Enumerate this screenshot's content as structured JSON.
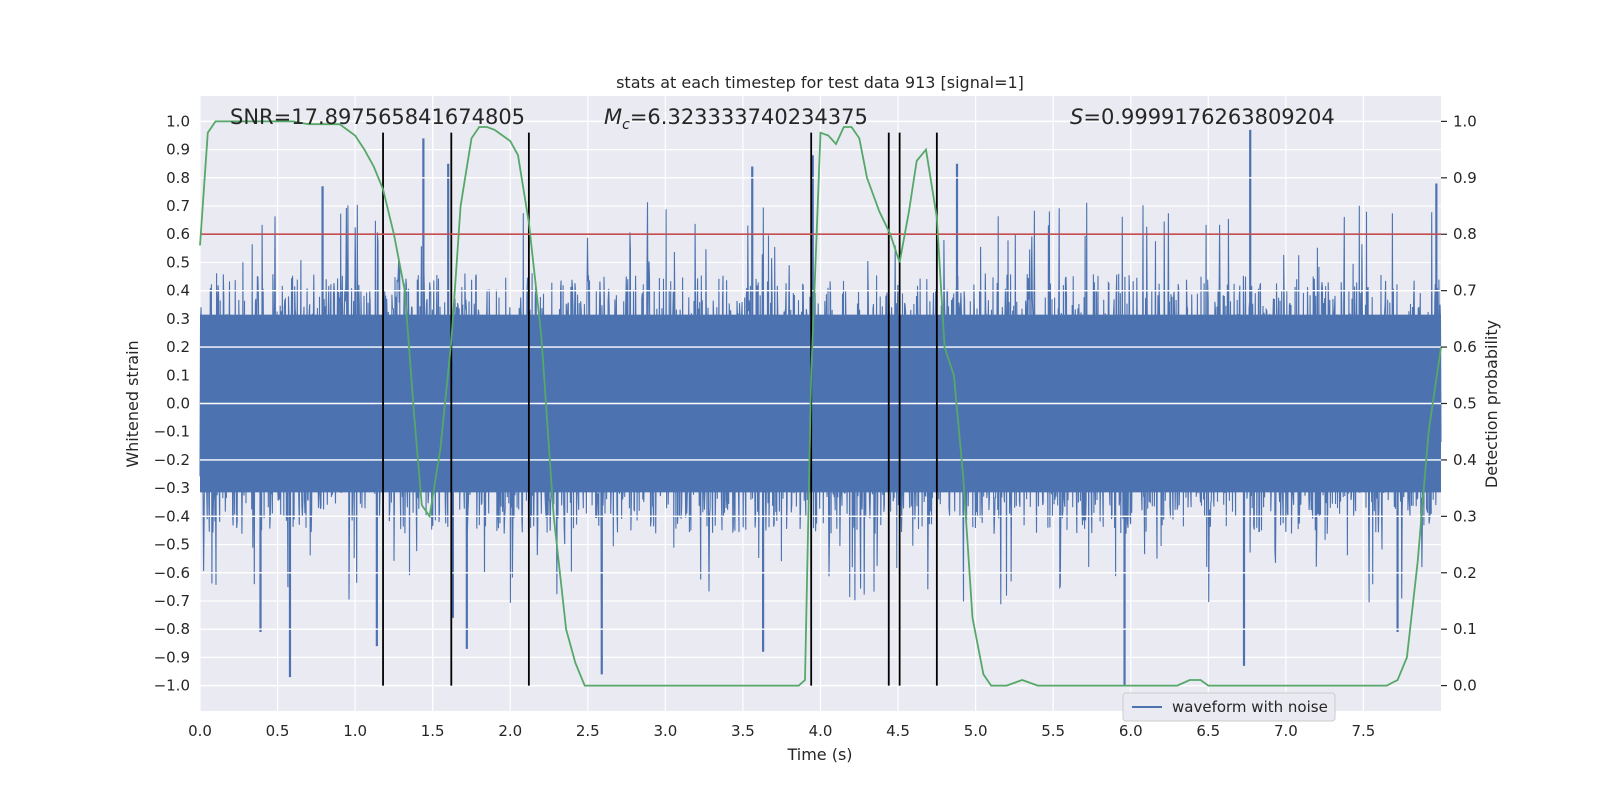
{
  "chart_data": {
    "type": "line",
    "title": "stats at each timestep for test data 913 [signal=1]",
    "xlabel": "Time (s)",
    "ylabel": "Whitened strain",
    "y2label": "Detection probability",
    "xlim": [
      0.0,
      8.0
    ],
    "ylim": [
      -1.09,
      1.09
    ],
    "y2lim": [
      -0.045,
      1.045
    ],
    "xticks": [
      0.0,
      0.5,
      1.0,
      1.5,
      2.0,
      2.5,
      3.0,
      3.5,
      4.0,
      4.5,
      5.0,
      5.5,
      6.0,
      6.5,
      7.0,
      7.5
    ],
    "xtick_labels": [
      "0.0",
      "0.5",
      "1.0",
      "1.5",
      "2.0",
      "2.5",
      "3.0",
      "3.5",
      "4.0",
      "4.5",
      "5.0",
      "5.5",
      "6.0",
      "6.5",
      "7.0",
      "7.5"
    ],
    "yticks": [
      1.0,
      0.9,
      0.8,
      0.7,
      0.6,
      0.5,
      0.4,
      0.3,
      0.2,
      0.1,
      0.0,
      -0.1,
      -0.2,
      -0.3,
      -0.4,
      -0.5,
      -0.6,
      -0.7,
      -0.8,
      -0.9,
      -1.0
    ],
    "ytick_labels": [
      "1.0",
      "0.9",
      "0.8",
      "0.7",
      "0.6",
      "0.5",
      "0.4",
      "0.3",
      "0.2",
      "0.1",
      "0.0",
      "−0.1",
      "−0.2",
      "−0.3",
      "−0.4",
      "−0.5",
      "−0.6",
      "−0.7",
      "−0.8",
      "−0.9",
      "−1.0"
    ],
    "y2ticks": [
      1.0,
      0.9,
      0.8,
      0.7,
      0.6,
      0.5,
      0.4,
      0.3,
      0.2,
      0.1,
      0.0
    ],
    "y2tick_labels": [
      "1.0",
      "0.9",
      "0.8",
      "0.7",
      "0.6",
      "0.5",
      "0.4",
      "0.3",
      "0.2",
      "0.1",
      "0.0"
    ],
    "grid": true,
    "legend": {
      "position": "lower-right",
      "entries": [
        {
          "label": "waveform with noise",
          "color": "#4c72b0"
        }
      ]
    },
    "annotations": {
      "snr": "SNR=17.897565841674805",
      "mc_symbol": "M",
      "mc_subscript": "c",
      "mc_value": "=6.323333740234375",
      "s_symbol": "S",
      "s_value": "=0.9999176263809204"
    },
    "threshold": {
      "y2": 0.8,
      "color": "#c44e52"
    },
    "vertical_lines": [
      1.18,
      1.62,
      2.12,
      3.94,
      4.44,
      4.51,
      4.75
    ],
    "noise_series": {
      "name": "waveform with noise",
      "color": "#4c72b0",
      "x_range": [
        0.0,
        8.0
      ],
      "typical_amplitude": 0.42,
      "peak_spikes": [
        {
          "x": 0.58,
          "y": -0.97
        },
        {
          "x": 0.39,
          "y": -0.81
        },
        {
          "x": 0.79,
          "y": 0.77
        },
        {
          "x": 1.14,
          "y": -0.86
        },
        {
          "x": 1.44,
          "y": 0.94
        },
        {
          "x": 1.63,
          "y": -0.76
        },
        {
          "x": 1.72,
          "y": -0.87
        },
        {
          "x": 1.6,
          "y": 0.85
        },
        {
          "x": 2.59,
          "y": -0.96
        },
        {
          "x": 3.63,
          "y": -0.88
        },
        {
          "x": 3.56,
          "y": 0.84
        },
        {
          "x": 3.95,
          "y": 0.88
        },
        {
          "x": 4.88,
          "y": 0.85
        },
        {
          "x": 5.96,
          "y": -1.0
        },
        {
          "x": 6.77,
          "y": 0.97
        },
        {
          "x": 6.73,
          "y": -0.93
        },
        {
          "x": 7.97,
          "y": 0.78
        },
        {
          "x": 7.72,
          "y": -0.81
        }
      ]
    },
    "probability_series": {
      "name": "Detection probability",
      "color": "#55a868",
      "x": [
        0.0,
        0.05,
        0.1,
        0.15,
        0.2,
        0.3,
        0.4,
        0.5,
        0.6,
        0.7,
        0.8,
        0.9,
        1.0,
        1.06,
        1.12,
        1.18,
        1.25,
        1.32,
        1.38,
        1.43,
        1.48,
        1.55,
        1.62,
        1.68,
        1.75,
        1.8,
        1.85,
        1.9,
        1.95,
        2.0,
        2.05,
        2.12,
        2.2,
        2.28,
        2.36,
        2.42,
        2.48,
        2.55,
        2.7,
        2.9,
        3.1,
        3.3,
        3.5,
        3.7,
        3.8,
        3.86,
        3.9,
        3.94,
        4.0,
        4.05,
        4.1,
        4.15,
        4.2,
        4.25,
        4.3,
        4.38,
        4.45,
        4.51,
        4.57,
        4.62,
        4.68,
        4.75,
        4.8,
        4.86,
        4.92,
        4.98,
        5.05,
        5.1,
        5.2,
        5.3,
        5.4,
        5.5,
        5.7,
        5.9,
        6.1,
        6.3,
        6.38,
        6.45,
        6.5,
        6.6,
        6.65,
        6.7,
        6.8,
        7.0,
        7.2,
        7.4,
        7.5,
        7.6,
        7.65,
        7.72,
        7.78,
        7.85,
        7.92,
        8.0
      ],
      "y": [
        0.78,
        0.98,
        1.0,
        1.0,
        1.0,
        1.0,
        1.0,
        1.0,
        1.0,
        0.995,
        0.995,
        0.995,
        0.975,
        0.95,
        0.92,
        0.88,
        0.8,
        0.7,
        0.48,
        0.32,
        0.3,
        0.42,
        0.61,
        0.85,
        0.97,
        0.99,
        0.99,
        0.985,
        0.975,
        0.965,
        0.94,
        0.82,
        0.62,
        0.3,
        0.1,
        0.04,
        0.0,
        0.0,
        0.0,
        0.0,
        0.0,
        0.0,
        0.0,
        0.0,
        0.0,
        0.0,
        0.01,
        0.55,
        0.98,
        0.975,
        0.96,
        0.99,
        0.99,
        0.97,
        0.9,
        0.84,
        0.8,
        0.75,
        0.84,
        0.93,
        0.95,
        0.83,
        0.6,
        0.55,
        0.37,
        0.12,
        0.02,
        0.0,
        0.0,
        0.01,
        0.0,
        0.0,
        0.0,
        0.0,
        0.0,
        0.0,
        0.01,
        0.01,
        0.0,
        0.0,
        0.0,
        0.0,
        0.0,
        0.0,
        0.0,
        0.0,
        0.0,
        0.0,
        0.0,
        0.01,
        0.05,
        0.22,
        0.45,
        0.6
      ]
    }
  }
}
